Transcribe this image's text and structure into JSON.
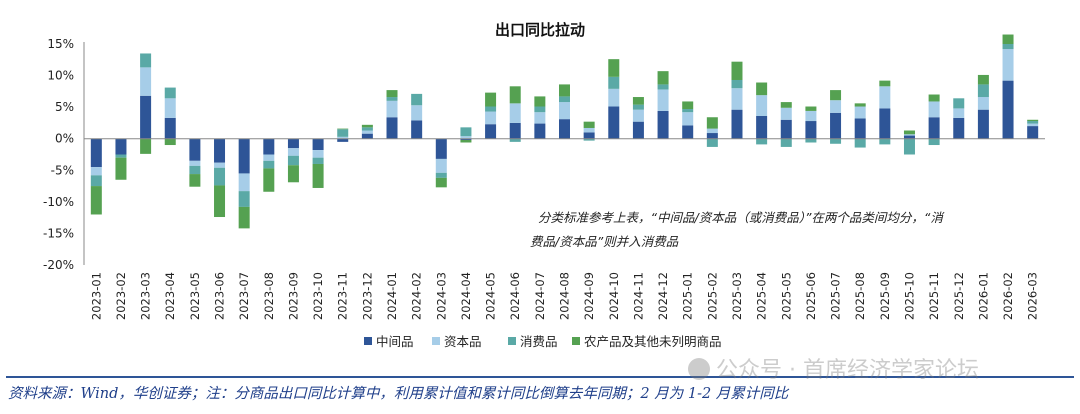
{
  "chart_data": {
    "type": "bar",
    "stacked": true,
    "title": "出口同比拉动",
    "ylim": [
      -20,
      15
    ],
    "yticks": [
      15,
      10,
      5,
      0,
      -5,
      -10,
      -15,
      -20
    ],
    "ytick_suffix": "%",
    "categories": [
      "2023-01",
      "2023-02",
      "2023-03",
      "2023-04",
      "2023-05",
      "2023-06",
      "2023-07",
      "2023-08",
      "2023-09",
      "2023-10",
      "2023-11",
      "2023-12",
      "2024-01",
      "2024-02",
      "2024-03",
      "2024-04",
      "2024-05",
      "2024-06",
      "2024-07",
      "2024-08",
      "2024-09",
      "2024-10",
      "2024-11",
      "2024-12",
      "2025-01",
      "2025-02",
      "2025-03",
      "2025-04",
      "2025-05",
      "2025-06",
      "2025-07",
      "2025-08",
      "2025-09",
      "2025-10",
      "2025-11",
      "2025-12",
      "2026-01",
      "2026-02",
      "2026-03"
    ],
    "series": [
      {
        "name": "中间品",
        "color": "#2e5597",
        "values": [
          -4.5,
          -2.5,
          6.8,
          3.3,
          -3.5,
          -3.8,
          -5.5,
          -2.5,
          -1.5,
          -1.8,
          -0.5,
          0.8,
          3.4,
          2.9,
          -3.2,
          -0.2,
          2.3,
          2.5,
          2.4,
          3.1,
          1.0,
          5.1,
          2.7,
          4.4,
          2.1,
          0.9,
          4.6,
          3.6,
          3.0,
          2.8,
          4.1,
          3.2,
          4.8,
          0.5,
          3.4,
          3.3,
          4.6,
          9.2,
          2.0
        ]
      },
      {
        "name": "资本品",
        "color": "#a6cde8",
        "values": [
          -1.3,
          0,
          4.5,
          3.1,
          -0.8,
          -0.8,
          -2.8,
          -1.0,
          -1.2,
          -1.2,
          0.3,
          0.5,
          2.6,
          2.4,
          -2.2,
          0.4,
          2.0,
          3.1,
          1.8,
          2.7,
          0.7,
          2.8,
          1.9,
          3.4,
          2.1,
          0.7,
          3.4,
          3.3,
          1.9,
          1.6,
          2.0,
          1.9,
          3.5,
          0.2,
          2.5,
          1.5,
          2.0,
          5.0,
          0.4
        ]
      },
      {
        "name": "消费品",
        "color": "#5aa9a6",
        "values": [
          -1.7,
          -0.5,
          2.2,
          1.7,
          -1.3,
          -2.8,
          -2.5,
          -1.2,
          -1.5,
          -1.0,
          1.2,
          0.5,
          0.6,
          1.8,
          -0.8,
          1.4,
          0.8,
          -0.5,
          0.9,
          0.9,
          -0.3,
          1.9,
          0.8,
          0.8,
          0.5,
          -1.3,
          1.3,
          -0.9,
          -1.3,
          -0.6,
          -0.8,
          -1.4,
          -0.9,
          -2.5,
          -1.0,
          1.6,
          2.0,
          0.8,
          0.4
        ]
      },
      {
        "name": "农产品及其他未列明商品",
        "color": "#55a151",
        "values": [
          -4.5,
          -3.5,
          -2.4,
          -1.0,
          -2.0,
          -5.0,
          -3.4,
          -3.7,
          -2.7,
          -3.8,
          0.1,
          0.4,
          1.1,
          0.0,
          -1.5,
          -0.4,
          2.2,
          2.7,
          1.6,
          1.9,
          1.0,
          2.8,
          1.2,
          2.1,
          1.2,
          1.8,
          2.9,
          2.0,
          0.9,
          0.7,
          1.6,
          0.5,
          0.9,
          0.6,
          1.1,
          0.0,
          1.5,
          1.5,
          0.2
        ]
      }
    ],
    "legend_position": "bottom",
    "annotation": "分类标准参考上表，“中间品/资本品（或消费品）”在两个品类间均分，“消费品/资本品”则并入消费品",
    "grid": false
  },
  "footer": {
    "source": "资料来源：Wind，华创证券；注：分商品出口同比计算中，利用累计值和累计同比倒算去年同期；2 月为 1-2 月累计同比"
  },
  "watermark": {
    "text": "公众号 · 首席经济学家论坛"
  }
}
